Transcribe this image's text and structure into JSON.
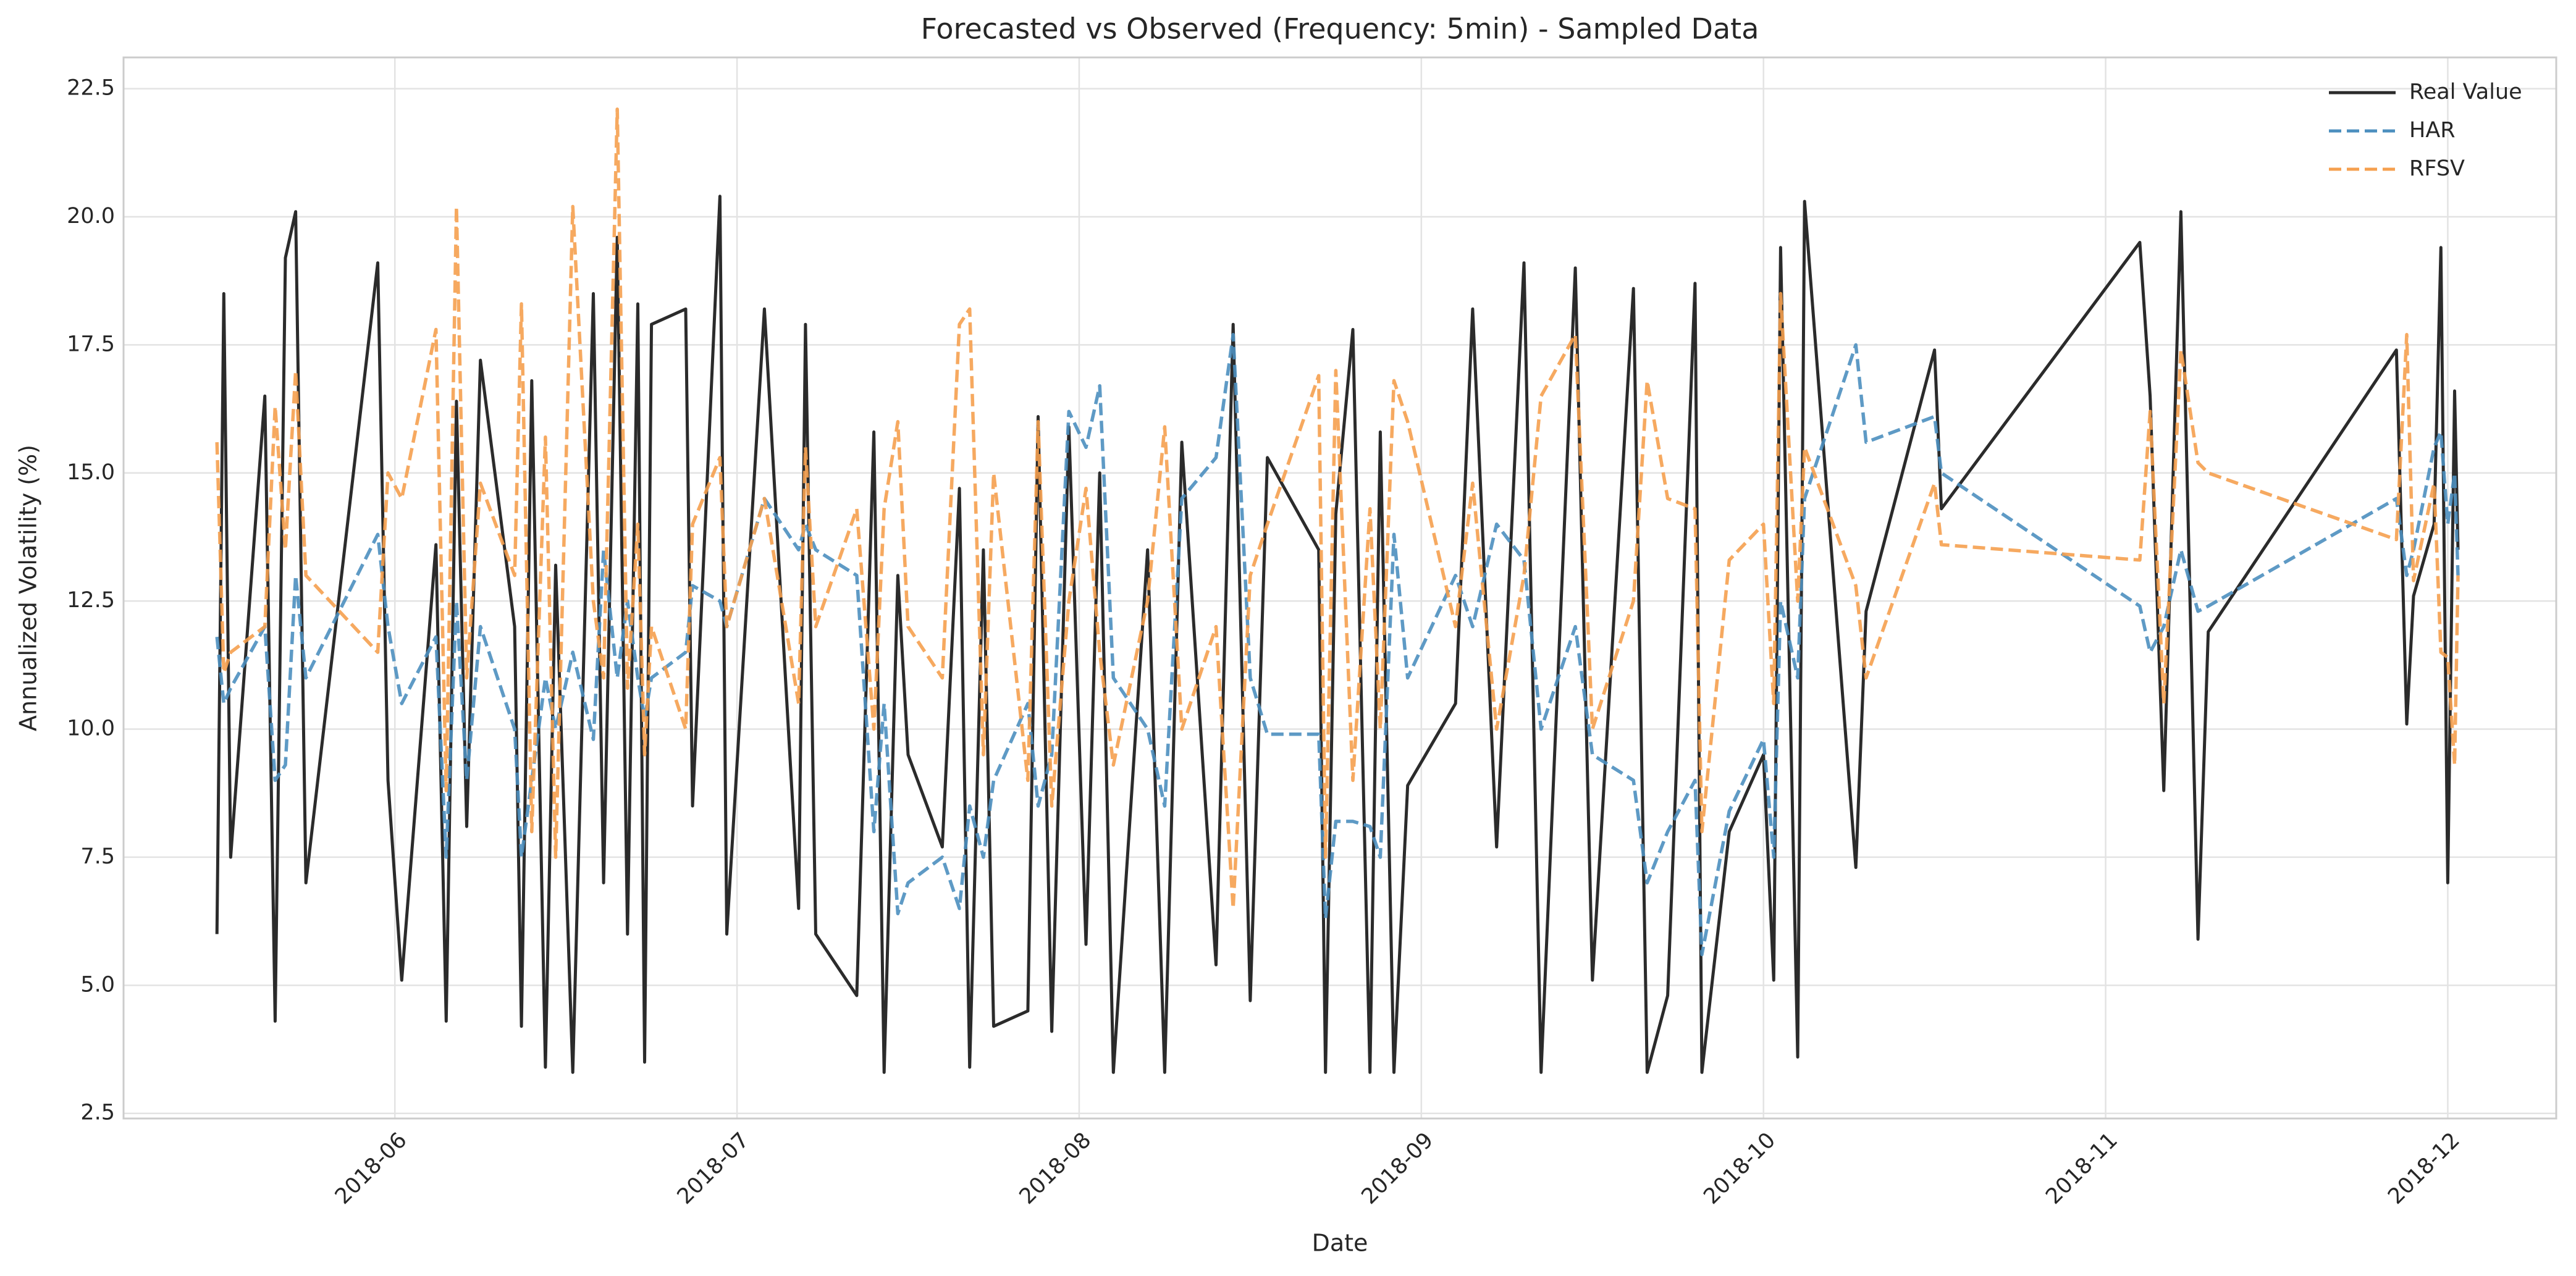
{
  "chart_data": {
    "type": "line",
    "title": "Forecasted vs Observed (Frequency: 5min) - Sampled Data",
    "xlabel": "Date",
    "ylabel": "Annualized Volatility (%)",
    "x": [
      5.48,
      5.5,
      5.52,
      5.62,
      5.65,
      5.68,
      5.71,
      5.74,
      5.95,
      5.98,
      6.02,
      6.12,
      6.15,
      6.18,
      6.21,
      6.25,
      6.35,
      6.37,
      6.4,
      6.44,
      6.47,
      6.52,
      6.58,
      6.61,
      6.65,
      6.68,
      6.71,
      6.73,
      6.75,
      6.85,
      6.87,
      6.95,
      6.97,
      7.08,
      7.18,
      7.2,
      7.23,
      7.35,
      7.4,
      7.43,
      7.47,
      7.5,
      7.6,
      7.65,
      7.68,
      7.72,
      7.75,
      7.85,
      7.88,
      7.92,
      7.97,
      8.02,
      8.06,
      8.1,
      8.2,
      8.25,
      8.3,
      8.4,
      8.45,
      8.5,
      8.55,
      8.7,
      8.72,
      8.75,
      8.8,
      8.85,
      8.88,
      8.92,
      8.96,
      9.1,
      9.15,
      9.22,
      9.3,
      9.35,
      9.45,
      9.5,
      9.62,
      9.66,
      9.72,
      9.8,
      9.82,
      9.9,
      10.0,
      10.03,
      10.05,
      10.1,
      10.12,
      10.27,
      10.3,
      10.5,
      10.52,
      11.1,
      11.13,
      11.17,
      11.22,
      11.27,
      11.3,
      11.85,
      11.88,
      11.9,
      11.96,
      11.98,
      12.0,
      12.02,
      12.03
    ],
    "series": [
      {
        "name": "Real Value",
        "color": "#2b2b2b",
        "style": "solid",
        "values": [
          6.0,
          18.5,
          7.5,
          16.5,
          4.3,
          19.2,
          20.1,
          7.0,
          19.1,
          9.0,
          5.1,
          13.6,
          4.3,
          16.4,
          8.1,
          17.2,
          12.0,
          4.2,
          16.8,
          3.4,
          13.2,
          3.3,
          18.5,
          7.0,
          19.6,
          6.0,
          18.3,
          3.5,
          17.9,
          18.2,
          8.5,
          20.4,
          6.0,
          18.2,
          6.5,
          17.9,
          6.0,
          4.8,
          15.8,
          3.3,
          13.0,
          9.5,
          7.7,
          14.7,
          3.4,
          13.5,
          4.2,
          4.5,
          16.1,
          4.1,
          15.9,
          5.8,
          15.0,
          3.3,
          13.5,
          3.3,
          15.6,
          5.4,
          17.9,
          4.7,
          15.3,
          13.5,
          3.3,
          14.2,
          17.8,
          3.3,
          15.8,
          3.3,
          8.9,
          10.5,
          18.2,
          7.7,
          19.1,
          3.3,
          19.0,
          5.1,
          18.6,
          3.3,
          4.8,
          18.7,
          3.3,
          8.0,
          9.5,
          5.1,
          19.4,
          3.6,
          20.3,
          7.3,
          12.3,
          17.4,
          14.3,
          19.5,
          16.5,
          8.8,
          20.1,
          5.9,
          11.9,
          17.4,
          10.1,
          12.6,
          14.0,
          19.4,
          7.0,
          16.6,
          13.5
        ]
      },
      {
        "name": "HAR",
        "color": "#4c8fbf",
        "style": "dashed",
        "values": [
          11.8,
          10.5,
          10.8,
          12.0,
          9.0,
          9.3,
          13.0,
          11.0,
          13.8,
          12.0,
          10.5,
          11.8,
          7.5,
          12.5,
          9.0,
          12.0,
          10.0,
          7.5,
          9.0,
          11.0,
          10.0,
          11.5,
          9.8,
          13.5,
          11.0,
          12.5,
          11.0,
          10.2,
          11.0,
          11.5,
          12.8,
          12.5,
          12.0,
          14.5,
          13.5,
          14.0,
          13.5,
          13.0,
          8.0,
          10.5,
          6.4,
          7.0,
          7.5,
          6.5,
          8.5,
          7.5,
          9.0,
          10.5,
          8.5,
          9.5,
          16.2,
          15.5,
          16.7,
          11.0,
          10.0,
          8.5,
          14.5,
          15.3,
          17.7,
          11.0,
          9.9,
          9.9,
          6.3,
          8.2,
          8.2,
          8.1,
          7.5,
          13.8,
          11.0,
          13.0,
          12.0,
          14.0,
          13.3,
          10.0,
          12.0,
          9.5,
          9.0,
          7.0,
          8.0,
          9.0,
          5.6,
          8.4,
          9.8,
          7.5,
          12.5,
          11.0,
          14.5,
          17.5,
          15.6,
          16.1,
          15.0,
          12.4,
          11.5,
          12.0,
          13.5,
          12.3,
          12.4,
          14.5,
          13.0,
          13.5,
          15.5,
          15.8,
          14.0,
          15.0,
          13.0
        ]
      },
      {
        "name": "RFSV",
        "color": "#f5a04f",
        "style": "dashed",
        "values": [
          15.6,
          11.1,
          11.5,
          12.0,
          16.3,
          13.5,
          17.0,
          13.0,
          11.5,
          15.0,
          14.5,
          17.8,
          8.8,
          20.2,
          11.0,
          14.8,
          13.0,
          18.3,
          8.0,
          15.7,
          7.5,
          20.2,
          12.5,
          11.0,
          22.1,
          10.8,
          14.0,
          9.5,
          12.0,
          10.0,
          14.0,
          15.3,
          12.0,
          14.5,
          10.5,
          15.5,
          12.0,
          14.3,
          10.0,
          14.3,
          16.0,
          12.0,
          11.0,
          17.9,
          18.2,
          9.5,
          15.0,
          9.0,
          16.0,
          8.5,
          12.5,
          14.7,
          11.5,
          9.3,
          12.5,
          15.9,
          10.0,
          12.0,
          6.5,
          13.0,
          14.0,
          16.9,
          7.5,
          17.0,
          9.0,
          14.3,
          10.0,
          16.8,
          16.0,
          12.0,
          14.8,
          10.0,
          13.0,
          16.5,
          17.7,
          10.0,
          12.5,
          16.8,
          14.5,
          14.3,
          8.0,
          13.3,
          14.0,
          10.5,
          18.5,
          12.5,
          15.5,
          12.8,
          11.0,
          14.8,
          13.6,
          13.3,
          16.2,
          10.5,
          17.4,
          15.2,
          15.0,
          13.7,
          17.7,
          12.9,
          14.8,
          11.5,
          11.4,
          9.3,
          13.0
        ]
      }
    ],
    "xlim": [
      5.207,
      12.317
    ],
    "xticks": [
      {
        "value": 6,
        "label": "2018-06"
      },
      {
        "value": 7,
        "label": "2018-07"
      },
      {
        "value": 8,
        "label": "2018-08"
      },
      {
        "value": 9,
        "label": "2018-09"
      },
      {
        "value": 10,
        "label": "2018-10"
      },
      {
        "value": 11,
        "label": "2018-11"
      },
      {
        "value": 12,
        "label": "2018-12"
      }
    ],
    "ylim": [
      2.4,
      23.11
    ],
    "yticks": [
      {
        "value": 2.5,
        "label": "2.5"
      },
      {
        "value": 5,
        "label": "5.0"
      },
      {
        "value": 7.5,
        "label": "7.5"
      },
      {
        "value": 10,
        "label": "10.0"
      },
      {
        "value": 12.5,
        "label": "12.5"
      },
      {
        "value": 15,
        "label": "15.0"
      },
      {
        "value": 17.5,
        "label": "17.5"
      },
      {
        "value": 20,
        "label": "20.0"
      },
      {
        "value": 22.5,
        "label": "22.5"
      }
    ],
    "grid": true,
    "legend": "upper right"
  }
}
